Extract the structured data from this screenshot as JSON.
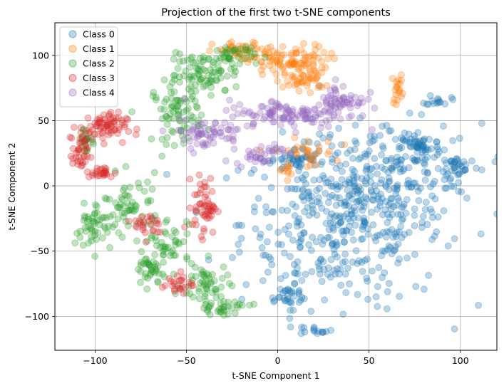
{
  "chart_data": {
    "type": "scatter",
    "title": "Projection of the first two t-SNE components",
    "xlabel": "t-SNE Component 1",
    "ylabel": "t-SNE Component 2",
    "xlim": [
      -122,
      120
    ],
    "ylim": [
      -126,
      125
    ],
    "xticks": [
      -100,
      -50,
      0,
      50,
      100
    ],
    "yticks": [
      -100,
      -50,
      0,
      50,
      100
    ],
    "xtick_labels": [
      "−100",
      "−50",
      "0",
      "50",
      "100"
    ],
    "ytick_labels": [
      "−100",
      "−50",
      "0",
      "50",
      "100"
    ],
    "grid": true,
    "legend_position": "top-left",
    "point_alpha": 0.3,
    "series": [
      {
        "name": "Class 0",
        "color": "#1f77b4",
        "clusters": [
          {
            "cx": 35,
            "cy": -28,
            "rx": 50,
            "ry": 58,
            "n": 420
          },
          {
            "cx": 65,
            "cy": 10,
            "rx": 42,
            "ry": 34,
            "n": 170
          },
          {
            "cx": 78,
            "cy": 30,
            "rx": 10,
            "ry": 8,
            "n": 40
          },
          {
            "cx": 100,
            "cy": 15,
            "rx": 10,
            "ry": 8,
            "n": 30
          },
          {
            "cx": 10,
            "cy": 20,
            "rx": 12,
            "ry": 8,
            "n": 40
          },
          {
            "cx": 88,
            "cy": 66,
            "rx": 6,
            "ry": 4,
            "n": 15
          },
          {
            "cx": 20,
            "cy": -110,
            "rx": 9,
            "ry": 3,
            "n": 14
          },
          {
            "cx": 5,
            "cy": -85,
            "rx": 12,
            "ry": 8,
            "n": 30
          }
        ]
      },
      {
        "name": "Class 1",
        "color": "#ff7f0e",
        "clusters": [
          {
            "cx": 5,
            "cy": 95,
            "rx": 20,
            "ry": 12,
            "n": 110
          },
          {
            "cx": -20,
            "cy": 103,
            "rx": 14,
            "ry": 7,
            "n": 35
          },
          {
            "cx": 15,
            "cy": 80,
            "rx": 10,
            "ry": 6,
            "n": 30
          },
          {
            "cx": 66,
            "cy": 75,
            "rx": 3,
            "ry": 11,
            "n": 20
          },
          {
            "cx": 15,
            "cy": 25,
            "rx": 15,
            "ry": 10,
            "n": 30
          },
          {
            "cx": 5,
            "cy": 12,
            "rx": 5,
            "ry": 6,
            "n": 10
          }
        ]
      },
      {
        "name": "Class 2",
        "color": "#2ca02c",
        "clusters": [
          {
            "cx": -40,
            "cy": 85,
            "rx": 18,
            "ry": 14,
            "n": 80
          },
          {
            "cx": -55,
            "cy": 55,
            "rx": 12,
            "ry": 20,
            "n": 70
          },
          {
            "cx": -25,
            "cy": 100,
            "rx": 12,
            "ry": 8,
            "n": 40
          },
          {
            "cx": -100,
            "cy": -33,
            "rx": 10,
            "ry": 16,
            "n": 50
          },
          {
            "cx": -80,
            "cy": -15,
            "rx": 14,
            "ry": 20,
            "n": 55
          },
          {
            "cx": -70,
            "cy": -65,
            "rx": 8,
            "ry": 12,
            "n": 40
          },
          {
            "cx": -40,
            "cy": -75,
            "rx": 12,
            "ry": 15,
            "n": 50
          },
          {
            "cx": -30,
            "cy": -93,
            "rx": 14,
            "ry": 5,
            "n": 35
          },
          {
            "cx": -60,
            "cy": -40,
            "rx": 10,
            "ry": 16,
            "n": 40
          },
          {
            "cx": -105,
            "cy": 35,
            "rx": 5,
            "ry": 10,
            "n": 20
          }
        ]
      },
      {
        "name": "Class 3",
        "color": "#d62728",
        "clusters": [
          {
            "cx": -96,
            "cy": 45,
            "rx": 12,
            "ry": 10,
            "n": 70
          },
          {
            "cx": -108,
            "cy": 25,
            "rx": 4,
            "ry": 14,
            "n": 35
          },
          {
            "cx": -97,
            "cy": 10,
            "rx": 7,
            "ry": 4,
            "n": 25
          },
          {
            "cx": -40,
            "cy": -15,
            "rx": 6,
            "ry": 20,
            "n": 55
          },
          {
            "cx": -55,
            "cy": -75,
            "rx": 8,
            "ry": 8,
            "n": 25
          },
          {
            "cx": -70,
            "cy": -30,
            "rx": 8,
            "ry": 10,
            "n": 25
          }
        ]
      },
      {
        "name": "Class 4",
        "color": "#9467bd",
        "clusters": [
          {
            "cx": 5,
            "cy": 55,
            "rx": 30,
            "ry": 10,
            "n": 110
          },
          {
            "cx": 35,
            "cy": 65,
            "rx": 12,
            "ry": 12,
            "n": 60
          },
          {
            "cx": -40,
            "cy": 40,
            "rx": 18,
            "ry": 10,
            "n": 60
          },
          {
            "cx": -10,
            "cy": 25,
            "rx": 12,
            "ry": 8,
            "n": 35
          }
        ]
      }
    ]
  }
}
